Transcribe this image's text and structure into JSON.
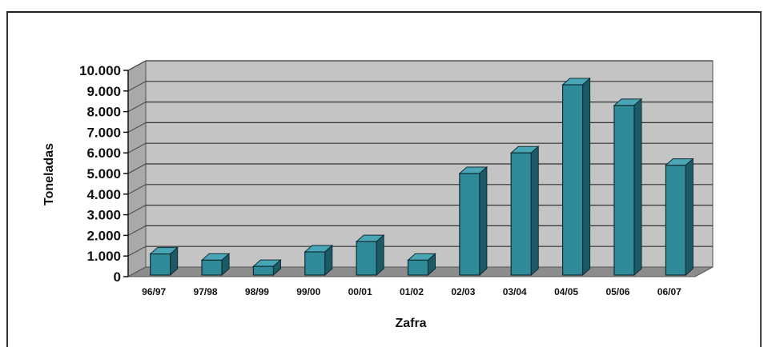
{
  "chart_data": {
    "type": "bar",
    "title": "",
    "xlabel": "Zafra",
    "ylabel": "Toneladas",
    "categories": [
      "96/97",
      "97/98",
      "98/99",
      "99/00",
      "00/01",
      "01/02",
      "02/03",
      "03/04",
      "04/05",
      "05/06",
      "06/07"
    ],
    "values": [
      1100,
      800,
      500,
      1200,
      1700,
      800,
      5000,
      6000,
      9300,
      8300,
      5400
    ],
    "ylim": [
      0,
      10000
    ],
    "yticks": [
      0,
      1000,
      2000,
      3000,
      4000,
      5000,
      6000,
      7000,
      8000,
      9000,
      10000
    ],
    "ytick_labels": [
      "0",
      "1.000",
      "2.000",
      "3.000",
      "4.000",
      "5.000",
      "6.000",
      "7.000",
      "8.000",
      "9.000",
      "10.000"
    ],
    "grid": true,
    "legend": "none",
    "bar_color": "#2f8a9a",
    "wall_color": "#c4c4c4",
    "floor_color": "#8c8c8c"
  }
}
